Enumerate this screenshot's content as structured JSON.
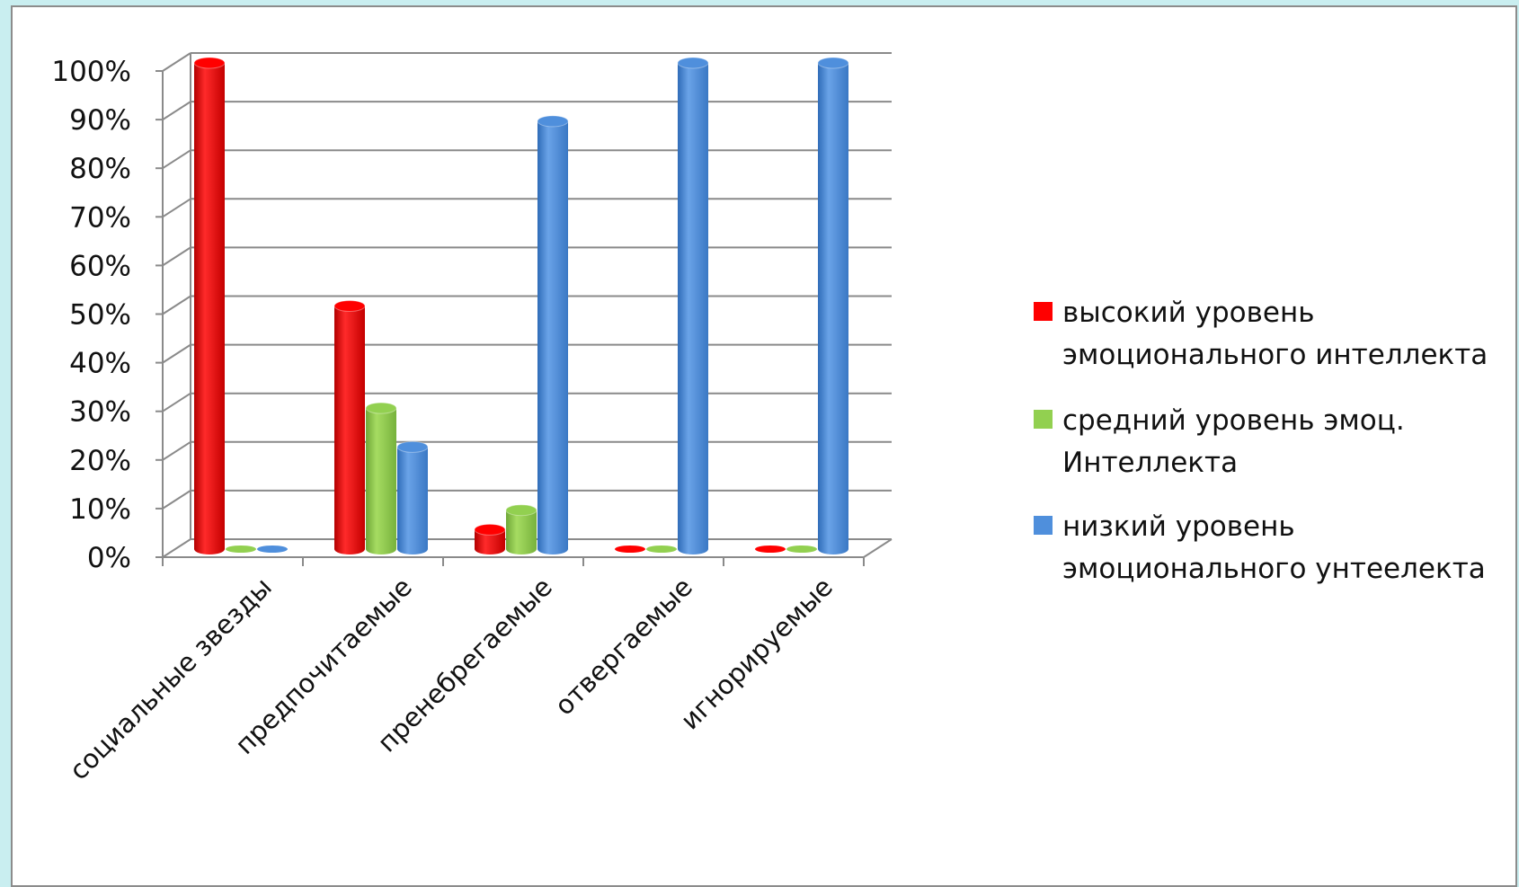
{
  "chart_data": {
    "type": "bar",
    "title": "",
    "xlabel": "",
    "ylabel": "",
    "ylim": [
      0,
      100
    ],
    "yticks": [
      "0%",
      "10%",
      "20%",
      "30%",
      "40%",
      "50%",
      "60%",
      "70%",
      "80%",
      "90%",
      "100%"
    ],
    "grid": true,
    "legend_position": "right",
    "categories": [
      "социальные звезды",
      "предпочитаемые",
      "пренебрегаемые",
      "отвергаемые",
      "игнорируемые"
    ],
    "series": [
      {
        "name_lines": [
          "высокий уровень",
          "эмоционального интеллекта"
        ],
        "color": "#ff0000",
        "values": [
          100,
          50,
          4,
          0,
          0
        ]
      },
      {
        "name_lines": [
          "средний уровень эмоц.",
          "Интеллекта"
        ],
        "color": "#92d050",
        "values": [
          0,
          29,
          8,
          0,
          0
        ]
      },
      {
        "name_lines": [
          "низкий уровень",
          "эмоционального унтеелекта"
        ],
        "color": "#4f8fdc",
        "values": [
          0,
          21,
          88,
          100,
          100
        ]
      }
    ]
  }
}
